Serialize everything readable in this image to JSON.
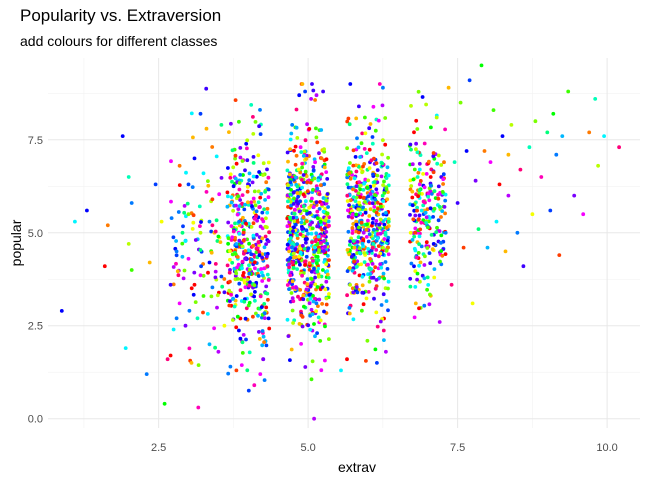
{
  "chart_data": {
    "type": "scatter",
    "title": "Popularity vs. Extraversion",
    "subtitle": "add colours for different classes",
    "xlabel": "extrav",
    "ylabel": "popular",
    "xlim": [
      0.65,
      10.55
    ],
    "ylim": [
      -0.25,
      9.7
    ],
    "x_ticks": [
      2.5,
      5.0,
      7.5,
      10.0
    ],
    "x_tick_labels": [
      "2.5",
      "5.0",
      "7.5",
      "10.0"
    ],
    "y_ticks": [
      0.0,
      2.5,
      5.0,
      7.5
    ],
    "y_tick_labels": [
      "0.0",
      "2.5",
      "5.0",
      "7.5"
    ],
    "grid": true,
    "legend": "none",
    "colors": [
      "#FF0000",
      "#FF3D00",
      "#FF7A00",
      "#FFB800",
      "#F5FF00",
      "#B8FF00",
      "#7AFF00",
      "#3DFF00",
      "#00FF00",
      "#00FF7A",
      "#00FFB8",
      "#00F5FF",
      "#00B8FF",
      "#007AFF",
      "#003DFF",
      "#0000FF",
      "#3D00FF",
      "#7A00FF",
      "#B800FF",
      "#F500FF",
      "#FF00B8",
      "#FF007A"
    ],
    "points": [
      [
        0.88,
        2.9,
        15
      ],
      [
        1.1,
        5.3,
        11
      ],
      [
        1.3,
        5.6,
        15
      ],
      [
        1.6,
        4.1,
        0
      ],
      [
        1.65,
        5.2,
        2
      ],
      [
        1.9,
        7.6,
        15
      ],
      [
        1.95,
        1.9,
        11
      ],
      [
        2.0,
        6.5,
        10
      ],
      [
        2.05,
        4.0,
        7
      ],
      [
        2.0,
        4.7,
        5
      ],
      [
        2.05,
        5.8,
        13
      ],
      [
        2.3,
        1.2,
        13
      ],
      [
        2.35,
        4.2,
        3
      ],
      [
        2.45,
        6.3,
        14
      ],
      [
        2.55,
        5.3,
        4
      ],
      [
        2.6,
        0.4,
        8
      ],
      [
        2.65,
        1.6,
        21
      ],
      [
        2.7,
        1.7,
        0
      ],
      [
        2.7,
        3.6,
        16
      ],
      [
        2.75,
        2.4,
        11
      ],
      [
        2.8,
        2.7,
        13
      ],
      [
        2.85,
        3.1,
        19
      ],
      [
        2.9,
        5.0,
        9
      ],
      [
        2.95,
        2.5,
        17
      ],
      [
        3.0,
        5.5,
        6
      ],
      [
        3.05,
        1.5,
        3
      ],
      [
        3.1,
        7.0,
        15
      ],
      [
        3.15,
        2.7,
        10
      ],
      [
        3.2,
        8.2,
        14
      ],
      [
        3.25,
        3.3,
        7
      ],
      [
        3.3,
        6.1,
        20
      ],
      [
        3.35,
        2.0,
        12
      ],
      [
        3.4,
        5.9,
        1
      ],
      [
        3.45,
        3.8,
        17
      ],
      [
        3.5,
        1.8,
        18
      ],
      [
        3.55,
        7.9,
        9
      ],
      [
        3.6,
        2.5,
        4
      ],
      [
        2.8,
        4.5,
        13
      ],
      [
        2.85,
        6.8,
        2
      ],
      [
        3.0,
        4.3,
        19
      ],
      [
        3.1,
        3.6,
        0
      ],
      [
        3.2,
        5.0,
        5
      ],
      [
        3.25,
        6.6,
        11
      ],
      [
        3.35,
        4.2,
        15
      ],
      [
        3.4,
        5.2,
        21
      ],
      [
        3.5,
        4.9,
        8
      ],
      [
        3.6,
        3.4,
        16
      ],
      [
        3.65,
        5.7,
        12
      ],
      [
        3.3,
        7.8,
        3
      ],
      [
        3.0,
        6.3,
        14
      ],
      [
        6.8,
        3.1,
        3
      ],
      [
        6.9,
        5.6,
        11
      ],
      [
        6.95,
        7.4,
        20
      ],
      [
        7.0,
        3.8,
        9
      ],
      [
        7.05,
        6.5,
        0
      ],
      [
        7.1,
        4.7,
        15
      ],
      [
        7.15,
        8.1,
        5
      ],
      [
        7.2,
        2.6,
        18
      ],
      [
        7.25,
        6.1,
        7
      ],
      [
        7.3,
        5.0,
        13
      ],
      [
        7.35,
        8.9,
        3
      ],
      [
        7.4,
        3.6,
        21
      ],
      [
        7.45,
        6.9,
        10
      ],
      [
        7.5,
        5.8,
        16
      ],
      [
        7.55,
        8.5,
        6
      ],
      [
        7.6,
        4.6,
        1
      ],
      [
        7.7,
        9.1,
        14
      ],
      [
        7.75,
        3.1,
        4
      ],
      [
        7.8,
        6.4,
        17
      ],
      [
        7.85,
        5.1,
        9
      ],
      [
        7.9,
        9.5,
        8
      ],
      [
        7.95,
        7.2,
        2
      ],
      [
        8.0,
        4.6,
        12
      ],
      [
        8.05,
        6.9,
        19
      ],
      [
        8.1,
        8.3,
        7
      ],
      [
        8.15,
        5.3,
        11
      ],
      [
        8.2,
        6.3,
        0
      ],
      [
        8.25,
        7.6,
        15
      ],
      [
        8.3,
        4.5,
        3
      ],
      [
        8.35,
        6.0,
        18
      ],
      [
        8.4,
        7.9,
        5
      ],
      [
        8.5,
        5.0,
        13
      ],
      [
        8.55,
        6.7,
        21
      ],
      [
        8.6,
        4.1,
        16
      ],
      [
        8.7,
        7.3,
        10
      ],
      [
        8.75,
        5.5,
        4
      ],
      [
        8.8,
        8.0,
        6
      ],
      [
        8.9,
        6.5,
        20
      ],
      [
        9.0,
        7.7,
        9
      ],
      [
        9.05,
        5.6,
        14
      ],
      [
        9.1,
        8.2,
        8
      ],
      [
        9.2,
        4.4,
        1
      ],
      [
        9.25,
        7.6,
        12
      ],
      [
        9.35,
        8.8,
        7
      ],
      [
        9.45,
        6.0,
        17
      ],
      [
        9.6,
        5.5,
        19
      ],
      [
        9.7,
        7.7,
        2
      ],
      [
        9.8,
        8.6,
        10
      ],
      [
        9.85,
        6.8,
        5
      ],
      [
        9.95,
        7.6,
        11
      ],
      [
        10.2,
        7.3,
        21
      ],
      [
        9.15,
        7.1,
        13
      ],
      [
        8.35,
        7.1,
        3
      ],
      [
        7.65,
        7.2,
        15
      ],
      [
        4.85,
        8.7,
        15
      ],
      [
        4.95,
        8.8,
        14
      ],
      [
        5.25,
        8.8,
        16
      ],
      [
        5.05,
        8.6,
        18
      ],
      [
        5.95,
        8.1,
        7
      ],
      [
        6.25,
        8.9,
        13
      ],
      [
        5.1,
        0.0,
        18
      ],
      [
        4.2,
        1.2,
        19
      ],
      [
        4.1,
        0.9,
        20
      ],
      [
        3.7,
        1.4,
        13
      ],
      [
        3.8,
        1.3,
        1
      ],
      [
        4.25,
        1.6,
        17
      ],
      [
        5.55,
        1.3,
        11
      ],
      [
        5.65,
        1.6,
        0
      ],
      [
        6.15,
        1.5,
        14
      ],
      [
        6.3,
        1.8,
        18
      ]
    ],
    "clusters": [
      {
        "xmin": 3.65,
        "xmax": 4.35,
        "ymean": 4.8,
        "ysd": 1.3,
        "n": 420
      },
      {
        "xmin": 4.65,
        "xmax": 5.35,
        "ymean": 5.0,
        "ysd": 1.35,
        "n": 640
      },
      {
        "xmin": 5.65,
        "xmax": 6.35,
        "ymean": 5.2,
        "ysd": 1.2,
        "n": 500
      },
      {
        "xmin": 6.7,
        "xmax": 7.3,
        "ymean": 5.5,
        "ysd": 1.2,
        "n": 230
      },
      {
        "xmin": 2.7,
        "xmax": 3.6,
        "ymean": 4.6,
        "ysd": 1.5,
        "n": 90
      }
    ]
  }
}
